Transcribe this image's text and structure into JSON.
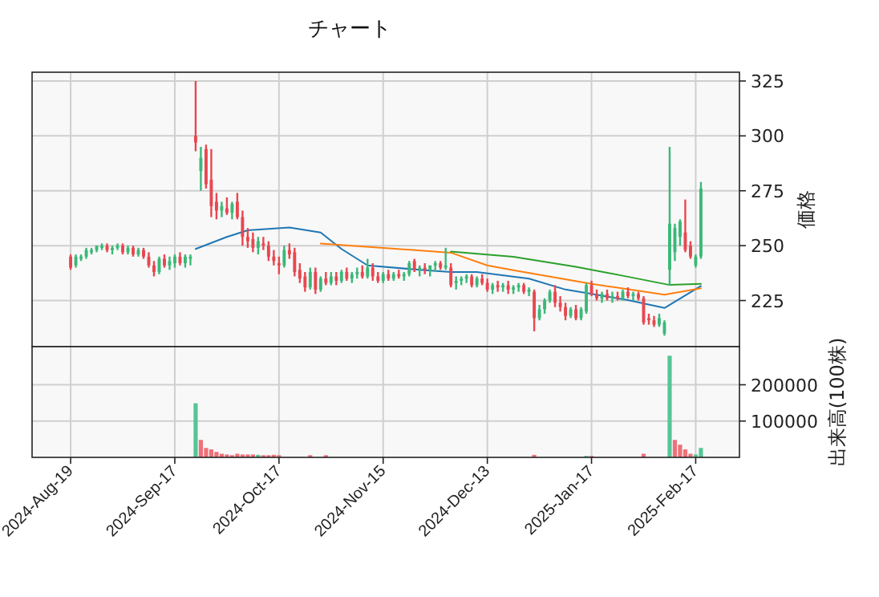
{
  "chart_data": [
    {
      "type": "candlestick",
      "title": "チャート",
      "ylabel": "価格",
      "tick_labels": "y",
      "grid": true,
      "categories": [
        null,
        null,
        null,
        null,
        null,
        null,
        null,
        null,
        null,
        null,
        null,
        null,
        null,
        null,
        null,
        null,
        null,
        null,
        null,
        null,
        null,
        null,
        null,
        null,
        null,
        null,
        null,
        null,
        null,
        null,
        null,
        null,
        null,
        null,
        null,
        null,
        null,
        null,
        null,
        null,
        null,
        null,
        null,
        null,
        null,
        null,
        null,
        null,
        null,
        null,
        null,
        null,
        null,
        null,
        null,
        null,
        null,
        null,
        null,
        null,
        null,
        null,
        null,
        null,
        null,
        null,
        null,
        null,
        null,
        null,
        null,
        null,
        null,
        null,
        null,
        null,
        null,
        null,
        null,
        null,
        null,
        null,
        null,
        null,
        null,
        null,
        null,
        null,
        null,
        null,
        null,
        null,
        null,
        null,
        null,
        null,
        null,
        null,
        null,
        null,
        null,
        null,
        null,
        null,
        null,
        null,
        null,
        null,
        null,
        null,
        null,
        null,
        null,
        null,
        null,
        null,
        null,
        null,
        null,
        null,
        null,
        null
      ],
      "ohlc": [
        [
          245,
          246,
          239,
          240
        ],
        [
          241,
          246,
          240,
          245
        ],
        [
          244,
          246,
          243,
          245
        ],
        [
          245,
          249,
          244,
          248
        ],
        [
          247,
          249,
          246,
          248
        ],
        [
          248,
          250,
          247,
          250
        ],
        [
          249,
          251,
          248,
          250
        ],
        [
          250,
          251,
          247,
          248
        ],
        [
          248,
          250,
          246,
          249
        ],
        [
          249,
          251,
          248,
          250
        ],
        [
          250,
          251,
          246,
          247
        ],
        [
          247,
          250,
          246,
          249
        ],
        [
          249,
          250,
          245,
          246
        ],
        [
          246,
          249,
          245,
          248
        ],
        [
          248,
          249,
          244,
          245
        ],
        [
          245,
          247,
          240,
          241
        ],
        [
          241,
          243,
          236,
          238
        ],
        [
          238,
          245,
          237,
          244
        ],
        [
          244,
          246,
          240,
          241
        ],
        [
          241,
          245,
          239,
          243
        ],
        [
          242,
          246,
          240,
          245
        ],
        [
          245,
          247,
          241,
          242
        ],
        [
          242,
          246,
          240,
          245
        ],
        [
          244,
          246,
          241,
          245
        ],
        [
          300,
          325,
          293,
          297
        ],
        [
          284,
          295,
          275,
          290
        ],
        [
          294,
          296,
          276,
          278
        ],
        [
          280,
          294,
          263,
          268
        ],
        [
          270,
          274,
          262,
          266
        ],
        [
          266,
          270,
          263,
          268
        ],
        [
          267,
          272,
          264,
          265
        ],
        [
          265,
          270,
          262,
          269
        ],
        [
          270,
          274,
          262,
          263
        ],
        [
          263,
          266,
          250,
          254
        ],
        [
          254,
          258,
          249,
          252
        ],
        [
          253,
          256,
          247,
          249
        ],
        [
          249,
          254,
          246,
          252
        ],
        [
          251,
          254,
          248,
          250
        ],
        [
          250,
          252,
          243,
          245
        ],
        [
          245,
          248,
          241,
          243
        ],
        [
          242,
          245,
          237,
          241
        ],
        [
          241,
          250,
          240,
          248
        ],
        [
          248,
          251,
          244,
          246
        ],
        [
          247,
          249,
          236,
          238
        ],
        [
          239,
          242,
          233,
          235
        ],
        [
          236,
          238,
          229,
          231
        ],
        [
          231,
          240,
          230,
          238
        ],
        [
          238,
          240,
          228,
          230
        ],
        [
          230,
          236,
          229,
          235
        ],
        [
          235,
          238,
          232,
          233
        ],
        [
          233,
          238,
          232,
          236
        ],
        [
          236,
          238,
          232,
          234
        ],
        [
          234,
          239,
          233,
          238
        ],
        [
          238,
          240,
          234,
          235
        ],
        [
          235,
          238,
          233,
          237
        ],
        [
          237,
          240,
          235,
          238
        ],
        [
          238,
          241,
          235,
          236
        ],
        [
          236,
          244,
          235,
          240
        ],
        [
          240,
          242,
          234,
          236
        ],
        [
          236,
          238,
          233,
          234
        ],
        [
          234,
          238,
          233,
          237
        ],
        [
          237,
          239,
          234,
          235
        ],
        [
          235,
          238,
          234,
          237
        ],
        [
          237,
          239,
          235,
          236
        ],
        [
          236,
          238,
          234,
          237
        ],
        [
          237,
          243,
          236,
          242
        ],
        [
          243,
          244,
          238,
          239
        ],
        [
          239,
          241,
          236,
          240
        ],
        [
          240,
          242,
          237,
          239
        ],
        [
          239,
          241,
          236,
          241
        ],
        [
          241,
          243,
          238,
          242
        ],
        [
          242,
          243,
          239,
          240
        ],
        [
          240,
          249,
          239,
          241
        ],
        [
          240,
          242,
          231,
          232
        ],
        [
          233,
          236,
          230,
          234
        ],
        [
          234,
          236,
          232,
          235
        ],
        [
          235,
          237,
          233,
          236
        ],
        [
          236,
          237,
          231,
          232
        ],
        [
          232,
          236,
          231,
          235
        ],
        [
          235,
          237,
          232,
          233
        ],
        [
          233,
          235,
          229,
          230
        ],
        [
          230,
          233,
          228,
          232
        ],
        [
          232,
          234,
          229,
          231
        ],
        [
          231,
          233,
          229,
          232
        ],
        [
          232,
          234,
          228,
          230
        ],
        [
          230,
          232,
          228,
          231
        ],
        [
          231,
          233,
          229,
          232
        ],
        [
          232,
          233,
          228,
          229
        ],
        [
          229,
          231,
          227,
          230
        ],
        [
          229,
          230,
          211,
          217
        ],
        [
          217,
          223,
          216,
          221
        ],
        [
          221,
          226,
          219,
          225
        ],
        [
          225,
          230,
          224,
          229
        ],
        [
          229,
          232,
          222,
          224
        ],
        [
          224,
          227,
          220,
          222
        ],
        [
          222,
          224,
          216,
          218
        ],
        [
          218,
          222,
          217,
          221
        ],
        [
          221,
          223,
          216,
          217
        ],
        [
          217,
          222,
          216,
          221
        ],
        [
          220,
          233,
          219,
          232
        ],
        [
          232,
          234,
          227,
          228
        ],
        [
          228,
          230,
          225,
          226
        ],
        [
          226,
          229,
          224,
          228
        ],
        [
          228,
          230,
          225,
          226
        ],
        [
          226,
          229,
          224,
          227
        ],
        [
          227,
          229,
          225,
          226
        ],
        [
          226,
          230,
          225,
          229
        ],
        [
          229,
          231,
          226,
          227
        ],
        [
          227,
          229,
          225,
          228
        ],
        [
          228,
          229,
          225,
          226
        ],
        [
          226,
          227,
          214,
          215
        ],
        [
          217,
          219,
          214,
          216
        ],
        [
          216,
          218,
          213,
          214
        ],
        [
          214,
          219,
          213,
          217
        ],
        [
          210,
          216,
          209,
          215
        ],
        [
          239,
          295,
          232,
          260
        ],
        [
          247,
          260,
          243,
          258
        ],
        [
          254,
          262,
          250,
          261
        ],
        [
          256,
          271,
          247,
          248
        ],
        [
          250,
          252,
          244,
          245
        ],
        [
          241,
          246,
          240,
          245
        ],
        [
          245,
          279,
          244,
          276
        ]
      ],
      "colors": [
        "#e8474f",
        "#3cb878",
        "#3cb878",
        "#3cb878",
        "#3cb878",
        "#3cb878",
        "#3cb878",
        "#e8474f",
        "#3cb878",
        "#3cb878",
        "#e8474f",
        "#3cb878",
        "#e8474f",
        "#3cb878",
        "#e8474f",
        "#e8474f",
        "#e8474f",
        "#3cb878",
        "#e8474f",
        "#3cb878",
        "#3cb878",
        "#e8474f",
        "#3cb878",
        "#3cb878",
        "#e8474f",
        "#3cb878",
        "#e8474f",
        "#e8474f",
        "#e8474f",
        "#3cb878",
        "#e8474f",
        "#3cb878",
        "#e8474f",
        "#e8474f",
        "#e8474f",
        "#e8474f",
        "#3cb878",
        "#e8474f",
        "#e8474f",
        "#e8474f",
        "#e8474f",
        "#3cb878",
        "#e8474f",
        "#e8474f",
        "#e8474f",
        "#e8474f",
        "#3cb878",
        "#e8474f",
        "#3cb878",
        "#e8474f",
        "#3cb878",
        "#e8474f",
        "#3cb878",
        "#e8474f",
        "#3cb878",
        "#3cb878",
        "#e8474f",
        "#3cb878",
        "#e8474f",
        "#e8474f",
        "#3cb878",
        "#e8474f",
        "#3cb878",
        "#e8474f",
        "#3cb878",
        "#3cb878",
        "#e8474f",
        "#3cb878",
        "#e8474f",
        "#3cb878",
        "#3cb878",
        "#e8474f",
        "#3cb878",
        "#e8474f",
        "#3cb878",
        "#3cb878",
        "#3cb878",
        "#e8474f",
        "#3cb878",
        "#e8474f",
        "#e8474f",
        "#3cb878",
        "#e8474f",
        "#3cb878",
        "#e8474f",
        "#3cb878",
        "#3cb878",
        "#e8474f",
        "#3cb878",
        "#e8474f",
        "#3cb878",
        "#3cb878",
        "#3cb878",
        "#e8474f",
        "#e8474f",
        "#e8474f",
        "#3cb878",
        "#e8474f",
        "#3cb878",
        "#3cb878",
        "#e8474f",
        "#e8474f",
        "#3cb878",
        "#e8474f",
        "#3cb878",
        "#e8474f",
        "#3cb878",
        "#e8474f",
        "#3cb878",
        "#e8474f",
        "#e8474f",
        "#e8474f",
        "#e8474f",
        "#3cb878",
        "#3cb878",
        "#3cb878",
        "#3cb878",
        "#3cb878",
        "#e8474f",
        "#e8474f",
        "#3cb878",
        "#3cb878"
      ],
      "series": [
        {
          "type": "line",
          "color": "#1f77b4",
          "values": [
            null,
            null,
            null,
            null,
            null,
            null,
            null,
            null,
            null,
            null,
            null,
            null,
            null,
            null,
            null,
            null,
            null,
            null,
            null,
            null,
            null,
            null,
            null,
            null,
            248.5,
            null,
            null,
            null,
            null,
            null,
            254,
            null,
            null,
            null,
            257,
            null,
            null,
            null,
            null,
            null,
            null,
            null,
            258.3,
            null,
            null,
            null,
            null,
            null,
            256,
            null,
            null,
            null,
            248.5,
            null,
            null,
            null,
            null,
            241,
            null,
            null,
            null,
            null,
            null,
            null,
            null,
            null,
            null,
            239,
            null,
            null,
            null,
            null,
            null,
            238,
            null,
            null,
            null,
            null,
            238,
            null,
            null,
            null,
            null,
            null,
            null,
            null,
            null,
            null,
            235,
            null,
            null,
            null,
            null,
            null,
            null,
            230,
            null,
            null,
            null,
            null,
            228,
            null,
            null,
            null,
            null,
            null,
            null,
            225.2,
            null,
            null,
            null,
            null,
            null,
            null,
            221.6,
            null,
            null,
            null,
            null,
            null,
            null,
            231.6
          ]
        },
        {
          "type": "line",
          "color": "#ff7f0e",
          "values": [
            null,
            null,
            null,
            null,
            null,
            null,
            null,
            null,
            null,
            null,
            null,
            null,
            null,
            null,
            null,
            null,
            null,
            null,
            null,
            null,
            null,
            null,
            null,
            null,
            null,
            null,
            null,
            null,
            null,
            null,
            null,
            null,
            null,
            null,
            null,
            null,
            null,
            null,
            null,
            null,
            null,
            null,
            null,
            null,
            null,
            null,
            null,
            null,
            251,
            null,
            null,
            null,
            null,
            null,
            null,
            null,
            null,
            null,
            null,
            null,
            null,
            null,
            null,
            null,
            null,
            null,
            null,
            null,
            null,
            null,
            null,
            null,
            null,
            246.8,
            null,
            null,
            null,
            null,
            null,
            null,
            241,
            null,
            null,
            null,
            null,
            238.8,
            null,
            null,
            null,
            null,
            null,
            null,
            null,
            null,
            null,
            null,
            null,
            null,
            null,
            null,
            232.6,
            null,
            null,
            null,
            null,
            null,
            null,
            null,
            null,
            null,
            null,
            null,
            null,
            null,
            227.7,
            null,
            null,
            null,
            null,
            null,
            null,
            230.6
          ]
        },
        {
          "type": "line",
          "color": "#2ca02c",
          "values": [
            null,
            null,
            null,
            null,
            null,
            null,
            null,
            null,
            null,
            null,
            null,
            null,
            null,
            null,
            null,
            null,
            null,
            null,
            null,
            null,
            null,
            null,
            null,
            null,
            null,
            null,
            null,
            null,
            null,
            null,
            null,
            null,
            null,
            null,
            null,
            null,
            null,
            null,
            null,
            null,
            null,
            null,
            null,
            null,
            null,
            null,
            null,
            null,
            null,
            null,
            null,
            null,
            null,
            null,
            null,
            null,
            null,
            null,
            null,
            null,
            null,
            null,
            null,
            null,
            null,
            null,
            null,
            null,
            null,
            null,
            null,
            null,
            null,
            247.3,
            null,
            null,
            null,
            null,
            null,
            null,
            null,
            null,
            null,
            null,
            null,
            244.9,
            null,
            null,
            null,
            null,
            null,
            null,
            null,
            null,
            null,
            null,
            null,
            240.4,
            null,
            null,
            null,
            null,
            null,
            null,
            null,
            null,
            236.3,
            null,
            null,
            null,
            null,
            null,
            null,
            null,
            null,
            232.1,
            null,
            null,
            null,
            null,
            null,
            232.6
          ]
        }
      ],
      "ylim": [
        204,
        329
      ],
      "yticks": [
        225,
        250,
        275,
        300,
        325
      ]
    },
    {
      "type": "bar",
      "ylabel": "出来高(100株)",
      "grid": true,
      "categories": [
        "2024-Aug-19",
        null,
        null,
        null,
        null,
        null,
        null,
        null,
        null,
        null,
        null,
        null,
        null,
        null,
        null,
        null,
        null,
        null,
        null,
        null,
        "2024-Sep-17",
        null,
        null,
        null,
        null,
        null,
        null,
        null,
        null,
        null,
        null,
        null,
        null,
        null,
        null,
        null,
        null,
        null,
        null,
        null,
        "2024-Oct-17",
        null,
        null,
        null,
        null,
        null,
        null,
        null,
        null,
        null,
        null,
        null,
        null,
        null,
        null,
        null,
        null,
        null,
        null,
        null,
        "2024-Nov-15",
        null,
        null,
        null,
        null,
        null,
        null,
        null,
        null,
        null,
        null,
        null,
        null,
        null,
        null,
        null,
        null,
        null,
        null,
        null,
        "2024-Dec-13",
        null,
        null,
        null,
        null,
        null,
        null,
        null,
        null,
        null,
        null,
        null,
        null,
        null,
        null,
        null,
        null,
        null,
        null,
        null,
        "2025-Jan-17",
        null,
        null,
        null,
        null,
        null,
        null,
        null,
        null,
        null,
        null,
        null,
        null,
        null,
        null,
        null,
        null,
        null,
        null,
        null,
        "2025-Feb-17",
        null
      ],
      "values": [
        0,
        0,
        0,
        0,
        0,
        0,
        0,
        0,
        0,
        0,
        0,
        0,
        0,
        0,
        0,
        0,
        0,
        0,
        0,
        0,
        0,
        0,
        0,
        0,
        149000,
        48000,
        26000,
        22000,
        15000,
        10000,
        8000,
        6000,
        10000,
        8000,
        8000,
        8000,
        7000,
        6000,
        6000,
        7000,
        6000,
        0,
        0,
        0,
        0,
        0,
        6000,
        0,
        0,
        6000,
        0,
        0,
        0,
        0,
        0,
        0,
        0,
        0,
        0,
        0,
        0,
        0,
        0,
        0,
        0,
        0,
        0,
        0,
        0,
        0,
        0,
        0,
        0,
        0,
        0,
        0,
        0,
        0,
        0,
        0,
        0,
        0,
        0,
        0,
        0,
        0,
        0,
        0,
        0,
        7000,
        0,
        0,
        0,
        0,
        0,
        0,
        0,
        0,
        0,
        4000,
        4000,
        0,
        0,
        0,
        0,
        0,
        0,
        0,
        0,
        0,
        10000,
        0,
        0,
        0,
        0,
        280000,
        48000,
        35000,
        22000,
        10000,
        8000,
        26000
      ],
      "colors": [
        "#ee7078",
        "#56c596",
        "#56c596",
        "#56c596",
        "#56c596",
        "#56c596",
        "#56c596",
        "#ee7078",
        "#56c596",
        "#56c596",
        "#ee7078",
        "#56c596",
        "#ee7078",
        "#56c596",
        "#ee7078",
        "#ee7078",
        "#ee7078",
        "#56c596",
        "#ee7078",
        "#56c596",
        "#56c596",
        "#ee7078",
        "#56c596",
        "#56c596",
        "#56c596",
        "#ee7078",
        "#ee7078",
        "#ee7078",
        "#ee7078",
        "#ee7078",
        "#ee7078",
        "#ee7078",
        "#ee7078",
        "#ee7078",
        "#ee7078",
        "#ee7078",
        "#56c596",
        "#ee7078",
        "#ee7078",
        "#ee7078",
        "#ee7078",
        "#56c596",
        "#ee7078",
        "#ee7078",
        "#ee7078",
        "#ee7078",
        "#ee7078",
        "#ee7078",
        "#56c596",
        "#ee7078",
        "#56c596",
        "#ee7078",
        "#56c596",
        "#ee7078",
        "#56c596",
        "#56c596",
        "#ee7078",
        "#56c596",
        "#ee7078",
        "#ee7078",
        "#56c596",
        "#ee7078",
        "#56c596",
        "#ee7078",
        "#56c596",
        "#56c596",
        "#ee7078",
        "#56c596",
        "#ee7078",
        "#56c596",
        "#56c596",
        "#ee7078",
        "#56c596",
        "#ee7078",
        "#56c596",
        "#56c596",
        "#56c596",
        "#ee7078",
        "#56c596",
        "#ee7078",
        "#ee7078",
        "#56c596",
        "#ee7078",
        "#56c596",
        "#ee7078",
        "#56c596",
        "#56c596",
        "#ee7078",
        "#56c596",
        "#ee7078",
        "#56c596",
        "#56c596",
        "#56c596",
        "#ee7078",
        "#ee7078",
        "#ee7078",
        "#56c596",
        "#ee7078",
        "#56c596",
        "#56c596",
        "#ee7078",
        "#ee7078",
        "#56c596",
        "#ee7078",
        "#56c596",
        "#ee7078",
        "#56c596",
        "#ee7078",
        "#56c596",
        "#ee7078",
        "#ee7078",
        "#ee7078",
        "#ee7078",
        "#56c596",
        "#56c596",
        "#56c596",
        "#ee7078",
        "#ee7078",
        "#ee7078",
        "#ee7078",
        "#56c596",
        "#56c596"
      ],
      "ylim": [
        0,
        305000
      ],
      "yticks": [
        100000,
        200000
      ]
    }
  ]
}
